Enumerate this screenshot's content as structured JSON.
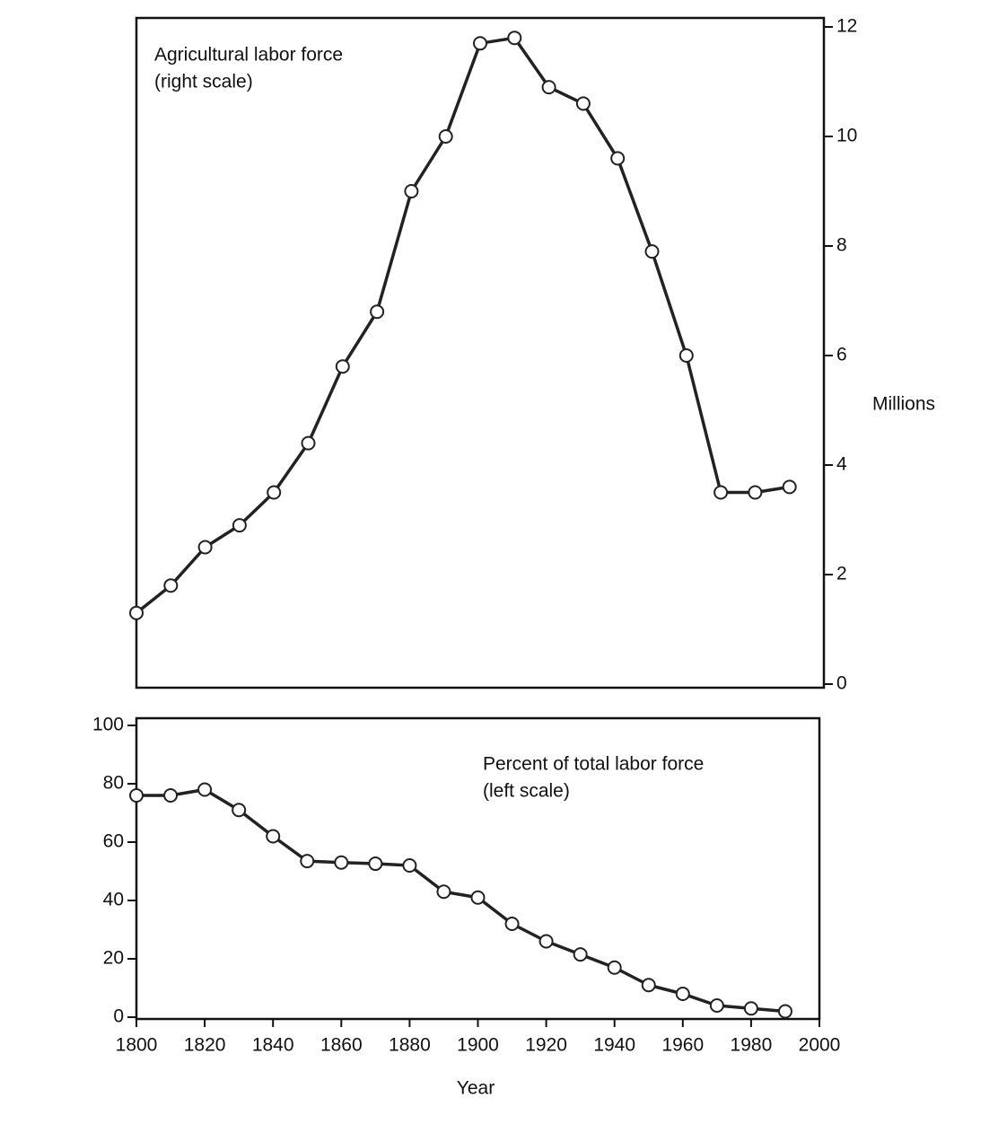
{
  "chart_data": [
    {
      "type": "line",
      "annotation": [
        "Agricultural labor force",
        "(right scale)"
      ],
      "ylabel": "Millions",
      "y_axis_side": "right",
      "x": [
        1800,
        1810,
        1820,
        1830,
        1840,
        1850,
        1860,
        1870,
        1880,
        1890,
        1900,
        1910,
        1920,
        1930,
        1940,
        1950,
        1960,
        1970,
        1980,
        1990
      ],
      "values": [
        1.3,
        1.8,
        2.5,
        2.9,
        3.5,
        4.4,
        5.8,
        6.8,
        9.0,
        10.0,
        11.7,
        11.8,
        10.9,
        10.6,
        9.6,
        7.9,
        6.0,
        3.5,
        3.5,
        3.6
      ],
      "color": "#222222",
      "xlim": [
        1800,
        2000
      ],
      "ylim": [
        0,
        12
      ],
      "yticks": [
        0,
        2,
        4,
        6,
        8,
        10,
        12
      ]
    },
    {
      "type": "line",
      "annotation": [
        "Percent of total labor force",
        "(left scale)"
      ],
      "xlabel": "Year",
      "y_axis_side": "left",
      "x": [
        1800,
        1810,
        1820,
        1830,
        1840,
        1850,
        1860,
        1870,
        1880,
        1890,
        1900,
        1910,
        1920,
        1930,
        1940,
        1950,
        1960,
        1970,
        1980,
        1990
      ],
      "values": [
        76,
        76,
        78,
        71,
        62,
        53.5,
        53,
        52.6,
        52,
        43,
        41,
        32,
        26,
        21.5,
        17,
        11,
        8,
        4,
        3,
        2
      ],
      "color": "#222222",
      "xlim": [
        1800,
        2000
      ],
      "xticks": [
        1800,
        1820,
        1840,
        1860,
        1880,
        1900,
        1920,
        1940,
        1960,
        1980,
        2000
      ],
      "ylim": [
        0,
        100
      ],
      "yticks": [
        0,
        20,
        40,
        60,
        80,
        100
      ]
    }
  ]
}
